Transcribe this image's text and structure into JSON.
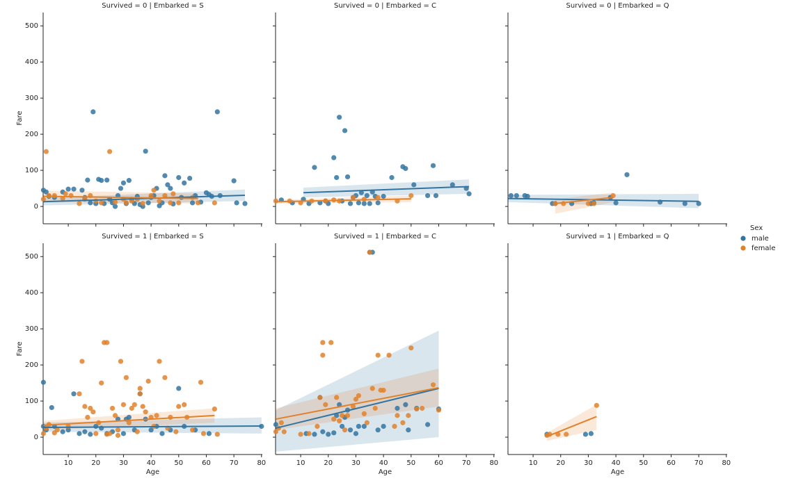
{
  "legend": {
    "title": "Sex",
    "entries": [
      {
        "name": "male",
        "color": "#3274a1"
      },
      {
        "name": "female",
        "color": "#e1812c"
      }
    ]
  },
  "chart_data": [
    {
      "type": "scatter",
      "title": "Survived = 0 | Embarked = S",
      "ylabel": "Fare",
      "xlim": [
        0.9,
        80.3
      ],
      "ylim": [
        -48,
        537
      ],
      "xticks": [
        10,
        20,
        30,
        40,
        50,
        60,
        70,
        80
      ],
      "yticks": [
        0,
        100,
        200,
        300,
        400,
        500
      ],
      "xtick_labels": false,
      "ytick_labels": true,
      "series": [
        {
          "color": "#3274a1",
          "x": [
            1,
            2,
            3,
            5,
            8,
            10,
            12,
            15,
            17,
            18,
            19,
            20,
            21,
            22,
            24,
            25,
            26,
            28,
            29,
            30,
            31,
            32,
            33,
            35,
            36,
            37,
            38,
            39,
            40,
            41,
            42,
            44,
            45,
            46,
            47,
            48,
            50,
            51,
            52,
            54,
            56,
            58,
            60,
            61,
            62,
            64,
            65,
            70,
            71,
            74,
            16,
            23,
            27,
            34,
            43,
            55
          ],
          "values": [
            45,
            40,
            28,
            25,
            40,
            48,
            48,
            45,
            73,
            10,
            262,
            8,
            75,
            72,
            73,
            20,
            10,
            30,
            50,
            65,
            8,
            72,
            20,
            28,
            5,
            0,
            153,
            10,
            25,
            30,
            50,
            10,
            85,
            60,
            50,
            7,
            80,
            25,
            65,
            78,
            30,
            12,
            38,
            33,
            28,
            262,
            30,
            71,
            10,
            8,
            25,
            8,
            0,
            8,
            2,
            10
          ],
          "fit": {
            "x": [
              1,
              74
            ],
            "y": [
              13,
              31
            ],
            "ci_low": [
              3,
              15
            ],
            "ci_high": [
              23,
              47
            ]
          }
        },
        {
          "color": "#e1812c",
          "x": [
            1,
            2,
            3,
            5,
            8,
            9,
            11,
            14,
            16,
            18,
            20,
            22,
            25,
            27,
            30,
            31,
            33,
            35,
            37,
            40,
            41,
            43,
            45,
            47,
            48,
            50,
            55,
            57,
            63
          ],
          "values": [
            20,
            152,
            30,
            30,
            22,
            35,
            30,
            8,
            20,
            30,
            15,
            10,
            152,
            12,
            20,
            10,
            15,
            20,
            8,
            30,
            45,
            15,
            30,
            10,
            35,
            10,
            25,
            10,
            10
          ],
          "fit": {
            "x": [
              1,
              57
            ],
            "y": [
              28,
              22
            ],
            "ci_low": [
              12,
              8
            ],
            "ci_high": [
              44,
              36
            ]
          }
        }
      ]
    },
    {
      "type": "scatter",
      "title": "Survived = 0 | Embarked = C",
      "xlim": [
        0.9,
        80.3
      ],
      "ylim": [
        -48,
        537
      ],
      "xticks": [
        10,
        20,
        30,
        40,
        50,
        60,
        70,
        80
      ],
      "yticks": [
        0,
        100,
        200,
        300,
        400,
        500
      ],
      "xtick_labels": false,
      "ytick_labels": false,
      "series": [
        {
          "color": "#3274a1",
          "x": [
            3,
            7,
            11,
            13,
            15,
            17,
            19,
            20,
            22,
            23,
            24,
            26,
            27,
            28,
            29,
            30,
            31,
            32,
            33,
            34,
            36,
            37,
            38,
            40,
            43,
            47,
            48,
            51,
            56,
            58,
            59,
            65,
            70,
            71,
            35,
            25
          ],
          "values": [
            18,
            10,
            20,
            8,
            108,
            10,
            15,
            8,
            135,
            80,
            247,
            210,
            82,
            8,
            25,
            30,
            10,
            38,
            8,
            30,
            40,
            28,
            10,
            28,
            80,
            110,
            105,
            60,
            30,
            113,
            30,
            60,
            50,
            35,
            8,
            15
          ],
          "fit": {
            "x": [
              11,
              71
            ],
            "y": [
              38,
              55
            ],
            "ci_low": [
              25,
              35
            ],
            "ci_high": [
              52,
              75
            ]
          }
        },
        {
          "color": "#e1812c",
          "x": [
            1,
            6,
            10,
            14,
            19,
            22,
            24,
            29,
            33,
            38,
            45,
            50
          ],
          "values": [
            15,
            15,
            10,
            15,
            15,
            18,
            15,
            25,
            20,
            25,
            15,
            30
          ],
          "fit": {
            "x": [
              1,
              50
            ],
            "y": [
              13,
              21
            ],
            "ci_low": [
              8,
              12
            ],
            "ci_high": [
              18,
              30
            ]
          }
        }
      ]
    },
    {
      "type": "scatter",
      "title": "Survived = 0 | Embarked = Q",
      "xlim": [
        0.9,
        80.3
      ],
      "ylim": [
        -48,
        537
      ],
      "xticks": [
        10,
        20,
        30,
        40,
        50,
        60,
        70,
        80
      ],
      "yticks": [
        0,
        100,
        200,
        300,
        400,
        500
      ],
      "xtick_labels": false,
      "ytick_labels": false,
      "series": [
        {
          "color": "#3274a1",
          "x": [
            2,
            4,
            7,
            8,
            17,
            18,
            24,
            31,
            32,
            38,
            40,
            44,
            56,
            65,
            70
          ],
          "values": [
            30,
            30,
            30,
            28,
            8,
            8,
            8,
            8,
            10,
            25,
            10,
            88,
            12,
            8,
            8
          ],
          "fit": {
            "x": [
              1,
              70
            ],
            "y": [
              22,
              14
            ],
            "ci_low": [
              12,
              -5
            ],
            "ci_high": [
              32,
              35
            ]
          }
        },
        {
          "color": "#e1812c",
          "x": [
            18,
            21,
            30,
            32,
            39
          ],
          "values": [
            8,
            8,
            8,
            8,
            30
          ],
          "fit": {
            "x": [
              18,
              39
            ],
            "y": [
              8,
              25
            ],
            "ci_low": [
              -20,
              12
            ],
            "ci_high": [
              20,
              38
            ]
          }
        }
      ]
    },
    {
      "type": "scatter",
      "title": "Survived = 1 | Embarked = S",
      "xlabel": "Age",
      "ylabel": "Fare",
      "xlim": [
        0.9,
        80.3
      ],
      "ylim": [
        -48,
        537
      ],
      "xticks": [
        10,
        20,
        30,
        40,
        50,
        60,
        70,
        80
      ],
      "yticks": [
        0,
        100,
        200,
        300,
        400,
        500
      ],
      "xtick_labels": true,
      "ytick_labels": true,
      "series": [
        {
          "color": "#3274a1",
          "x": [
            1,
            1,
            2,
            4,
            5,
            8,
            10,
            12,
            14,
            16,
            18,
            20,
            22,
            24,
            26,
            28,
            30,
            31,
            32,
            34,
            36,
            38,
            40,
            42,
            44,
            47,
            50,
            52,
            56,
            61,
            80
          ],
          "values": [
            152,
            30,
            20,
            82,
            30,
            15,
            20,
            120,
            10,
            15,
            8,
            30,
            25,
            10,
            15,
            50,
            10,
            50,
            55,
            20,
            120,
            50,
            20,
            30,
            10,
            20,
            135,
            30,
            20,
            10,
            30
          ],
          "fit": {
            "x": [
              1,
              80
            ],
            "y": [
              27,
              31
            ],
            "ci_low": [
              15,
              10
            ],
            "ci_high": [
              40,
              55
            ]
          }
        },
        {
          "color": "#e1812c",
          "x": [
            1,
            2,
            3,
            5,
            6,
            10,
            14,
            15,
            16,
            17,
            18,
            19,
            20,
            21,
            22,
            23,
            24,
            25,
            26,
            27,
            28,
            29,
            30,
            31,
            32,
            33,
            34,
            35,
            36,
            37,
            38,
            39,
            40,
            41,
            42,
            43,
            45,
            46,
            47,
            49,
            50,
            52,
            53,
            55,
            58,
            59,
            63,
            64,
            36,
            28,
            24
          ],
          "values": [
            10,
            25,
            35,
            12,
            20,
            30,
            120,
            210,
            85,
            55,
            80,
            70,
            10,
            40,
            150,
            262,
            262,
            10,
            80,
            60,
            20,
            210,
            90,
            165,
            40,
            80,
            90,
            15,
            135,
            85,
            70,
            155,
            55,
            30,
            60,
            210,
            165,
            25,
            55,
            15,
            85,
            90,
            55,
            20,
            152,
            10,
            78,
            8,
            120,
            5,
            8
          ],
          "fit": {
            "x": [
              1,
              63
            ],
            "y": [
              33,
              60
            ],
            "ci_low": [
              20,
              40
            ],
            "ci_high": [
              45,
              80
            ]
          }
        }
      ]
    },
    {
      "type": "scatter",
      "title": "Survived = 1 | Embarked = C",
      "xlabel": "Age",
      "xlim": [
        0.9,
        80.3
      ],
      "ylim": [
        -48,
        537
      ],
      "xticks": [
        10,
        20,
        30,
        40,
        50,
        60,
        70,
        80
      ],
      "yticks": [
        0,
        100,
        200,
        300,
        400,
        500
      ],
      "xtick_labels": true,
      "ytick_labels": false,
      "series": [
        {
          "color": "#3274a1",
          "x": [
            1,
            12,
            15,
            17,
            18,
            20,
            22,
            23,
            24,
            25,
            26,
            27,
            28,
            30,
            31,
            33,
            35,
            36,
            38,
            40,
            45,
            48,
            49,
            52,
            56,
            60
          ],
          "values": [
            35,
            10,
            8,
            110,
            15,
            8,
            12,
            60,
            90,
            30,
            55,
            75,
            20,
            10,
            30,
            30,
            512,
            512,
            20,
            30,
            80,
            90,
            20,
            80,
            35,
            78
          ],
          "fit": {
            "x": [
              1,
              60
            ],
            "y": [
              25,
              135
            ],
            "ci_low": [
              -40,
              0
            ],
            "ci_high": [
              75,
              295
            ]
          }
        },
        {
          "color": "#e1812c",
          "x": [
            1,
            2,
            3,
            4,
            10,
            13,
            16,
            17,
            18,
            18,
            19,
            21,
            22,
            23,
            24,
            25,
            26,
            27,
            29,
            30,
            31,
            33,
            34,
            35,
            36,
            37,
            38,
            39,
            40,
            42,
            44,
            45,
            47,
            49,
            50,
            52,
            54,
            58,
            60
          ],
          "values": [
            15,
            25,
            40,
            15,
            8,
            10,
            30,
            110,
            262,
            227,
            90,
            262,
            50,
            110,
            45,
            60,
            20,
            60,
            85,
            105,
            115,
            65,
            40,
            512,
            135,
            80,
            227,
            130,
            130,
            227,
            30,
            60,
            40,
            60,
            247,
            78,
            80,
            145,
            75
          ],
          "fit": {
            "x": [
              1,
              60
            ],
            "y": [
              50,
              137
            ],
            "ci_low": [
              20,
              85
            ],
            "ci_high": [
              80,
              190
            ]
          }
        }
      ]
    },
    {
      "type": "scatter",
      "title": "Survived = 1 | Embarked = Q",
      "xlabel": "Age",
      "xlim": [
        0.9,
        80.3
      ],
      "ylim": [
        -48,
        537
      ],
      "xticks": [
        10,
        20,
        30,
        40,
        50,
        60,
        70,
        80
      ],
      "yticks": [
        0,
        100,
        200,
        300,
        400,
        500
      ],
      "xtick_labels": true,
      "ytick_labels": false,
      "series": [
        {
          "color": "#3274a1",
          "x": [
            15,
            29,
            31
          ],
          "values": [
            8,
            8,
            10
          ]
        },
        {
          "color": "#e1812c",
          "x": [
            15,
            16,
            19,
            22,
            33
          ],
          "values": [
            5,
            8,
            8,
            8,
            88
          ],
          "fit": {
            "x": [
              15,
              33
            ],
            "y": [
              2,
              57
            ],
            "ci_low": [
              -10,
              20
            ],
            "ci_high": [
              12,
              90
            ]
          }
        }
      ]
    }
  ]
}
